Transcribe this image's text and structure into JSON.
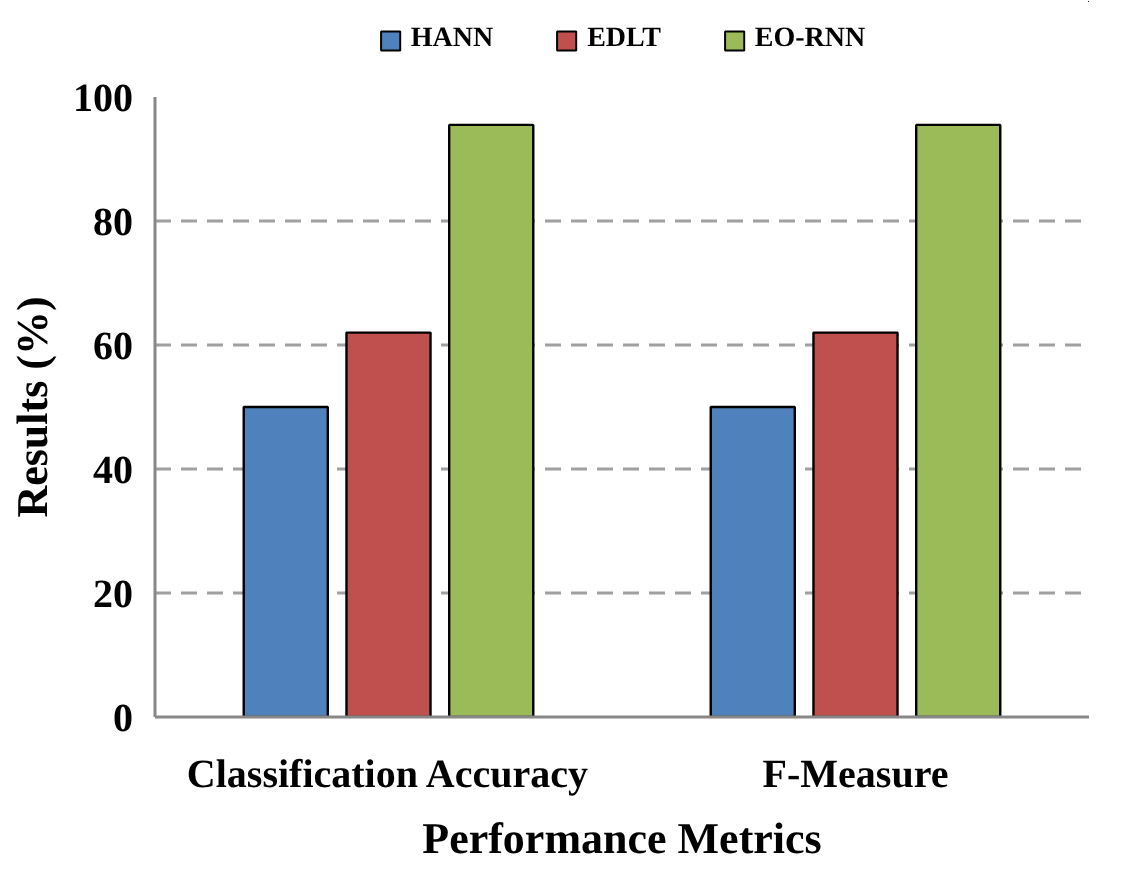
{
  "chart_data": {
    "type": "bar",
    "xlabel": "Performance Metrics",
    "ylabel": "Results (%)",
    "categories": [
      "Classification Accuracy",
      "F-Measure"
    ],
    "series": [
      {
        "name": "HANN",
        "color": "#4f81bd",
        "values": [
          50,
          50
        ]
      },
      {
        "name": "EDLT",
        "color": "#c0504d",
        "values": [
          62,
          62
        ]
      },
      {
        "name": "EO-RNN",
        "color": "#9bbb59",
        "values": [
          95.5,
          95.5
        ]
      }
    ],
    "ylim": [
      0,
      100
    ],
    "yticks": [
      0,
      20,
      40,
      60,
      80,
      100
    ],
    "grid": "y",
    "legend": "top"
  }
}
